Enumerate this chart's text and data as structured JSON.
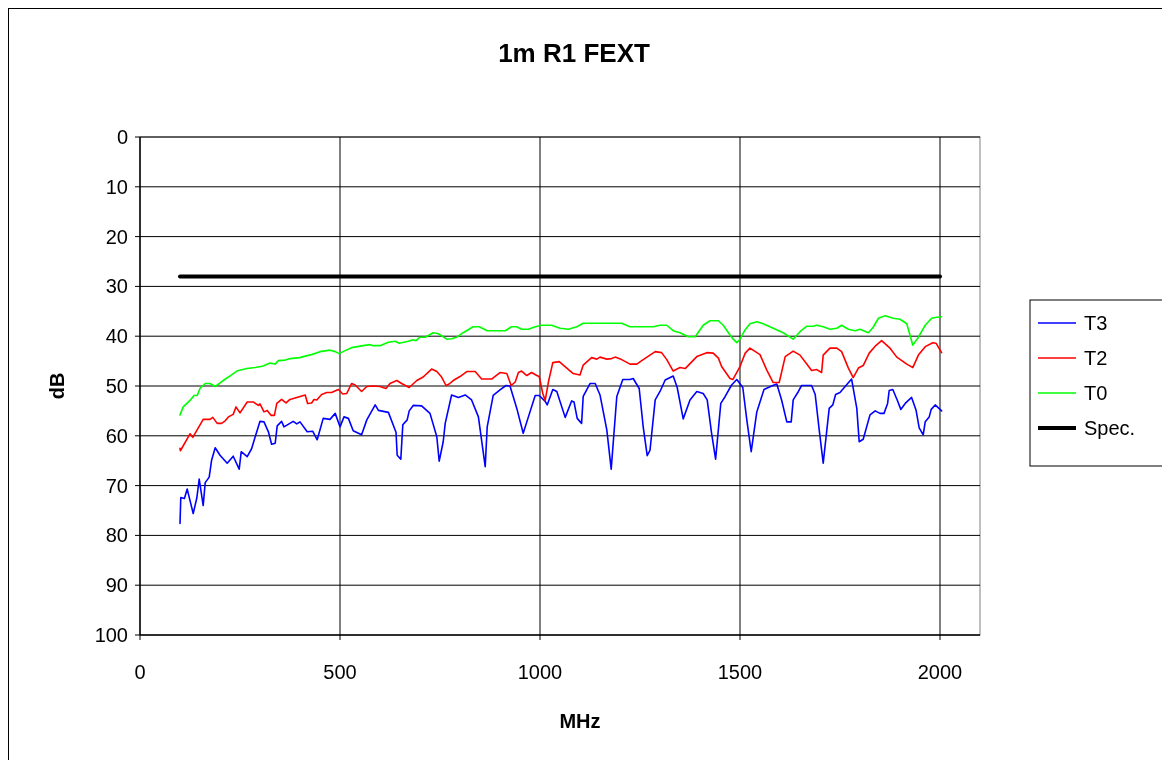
{
  "chart_data": {
    "type": "line",
    "title": "1m R1 FEXT",
    "xlabel": "MHz",
    "ylabel": "dB",
    "xlim": [
      0,
      2100
    ],
    "xticks": [
      0,
      500,
      1000,
      1500,
      2000
    ],
    "ylim": [
      100,
      0
    ],
    "yticks": [
      0,
      10,
      20,
      30,
      40,
      50,
      60,
      70,
      80,
      90,
      100
    ],
    "grid": true,
    "legend": "right",
    "marker": "none",
    "line_style": "solid",
    "series": [
      {
        "name": "T3",
        "color": "#0000ff",
        "x": [
          100,
          102,
          111,
          118,
          133,
          142,
          148,
          158,
          163,
          173,
          179,
          188,
          200,
          218,
          233,
          248,
          253,
          268,
          279,
          288,
          300,
          310,
          321,
          329,
          338,
          343,
          354,
          360,
          383,
          392,
          400,
          418,
          432,
          443,
          458,
          475,
          488,
          500,
          510,
          521,
          533,
          554,
          567,
          588,
          596,
          621,
          640,
          643,
          652,
          657,
          668,
          673,
          683,
          704,
          725,
          742,
          748,
          758,
          763,
          779,
          796,
          813,
          829,
          846,
          863,
          868,
          883,
          900,
          915,
          925,
          942,
          958,
          971,
          988,
          998,
          1013,
          1018,
          1032,
          1042,
          1063,
          1079,
          1085,
          1093,
          1104,
          1108,
          1125,
          1138,
          1150,
          1167,
          1178,
          1192,
          1207,
          1225,
          1233,
          1248,
          1258,
          1268,
          1275,
          1288,
          1300,
          1313,
          1333,
          1343,
          1358,
          1375,
          1392,
          1408,
          1418,
          1429,
          1439,
          1452,
          1463,
          1479,
          1492,
          1507,
          1517,
          1528,
          1542,
          1560,
          1579,
          1592,
          1604,
          1617,
          1628,
          1633,
          1646,
          1654,
          1679,
          1688,
          1698,
          1708,
          1723,
          1732,
          1739,
          1750,
          1779,
          1792,
          1798,
          1808,
          1825,
          1838,
          1850,
          1860,
          1869,
          1873,
          1882,
          1893,
          1902,
          1913,
          1929,
          1940,
          1948,
          1958,
          1963,
          1973,
          1978,
          1988,
          2004
        ],
        "values": [
          77.6,
          72.4,
          72.6,
          70.7,
          75.6,
          72.5,
          68.7,
          74,
          69.4,
          68.3,
          64.9,
          62.4,
          63.9,
          65.5,
          64.1,
          66.7,
          63.2,
          64.2,
          62.6,
          60.2,
          57.1,
          57.2,
          59.2,
          61.7,
          61.5,
          58,
          57.1,
          58.2,
          57.1,
          57.6,
          57.2,
          59.2,
          59.1,
          60.8,
          56.5,
          56.7,
          55.5,
          58.2,
          56.2,
          56.5,
          59,
          59.8,
          56.8,
          53.8,
          54.9,
          55.3,
          59.3,
          63.9,
          64.7,
          57.8,
          56.8,
          55,
          53.9,
          54,
          55.5,
          60.2,
          65.1,
          61.2,
          57.5,
          51.8,
          52.3,
          51.8,
          52.8,
          56.2,
          66.2,
          58.2,
          51.9,
          50.8,
          49.9,
          50,
          54.5,
          59.5,
          56.2,
          51.9,
          51.9,
          53.1,
          53.8,
          50.7,
          51.1,
          56.3,
          53,
          53.2,
          56.5,
          57.5,
          52.1,
          49.5,
          49.5,
          51.8,
          58.8,
          66.7,
          52.1,
          48.7,
          48.7,
          48.5,
          50.5,
          58.2,
          64,
          62.9,
          52.8,
          51.1,
          48.8,
          48,
          50.3,
          56.6,
          52.8,
          51.1,
          51.5,
          52.8,
          59.5,
          64.7,
          53.5,
          52.1,
          49.8,
          48.7,
          50.3,
          56.8,
          63.2,
          55.2,
          50.7,
          50,
          49.6,
          52.8,
          57.2,
          57.2,
          52.8,
          51.1,
          49.9,
          49.9,
          51.7,
          58.8,
          65.5,
          54.5,
          53.8,
          51.7,
          51.3,
          48.6,
          54.5,
          61.2,
          60.7,
          55.8,
          55,
          55.5,
          55.5,
          53.5,
          50.9,
          50.7,
          52.8,
          54.7,
          53.5,
          52.3,
          54.8,
          58.4,
          59.8,
          57.2,
          56.2,
          54.7,
          53.8,
          55
        ]
      },
      {
        "name": "T2",
        "color": "#ff0000",
        "x": [
          100,
          101,
          125,
          132,
          158,
          175,
          182,
          193,
          204,
          213,
          221,
          233,
          240,
          250,
          268,
          283,
          296,
          300,
          310,
          318,
          328,
          336,
          342,
          354,
          365,
          375,
          392,
          413,
          419,
          429,
          435,
          442,
          454,
          467,
          479,
          496,
          507,
          517,
          529,
          538,
          554,
          567,
          583,
          600,
          615,
          625,
          642,
          654,
          673,
          692,
          708,
          729,
          742,
          754,
          765,
          773,
          783,
          800,
          817,
          838,
          854,
          879,
          900,
          917,
          928,
          938,
          946,
          954,
          967,
          979,
          992,
          998,
          1007,
          1013,
          1021,
          1032,
          1048,
          1067,
          1083,
          1100,
          1108,
          1129,
          1142,
          1150,
          1167,
          1179,
          1188,
          1204,
          1225,
          1242,
          1258,
          1288,
          1304,
          1317,
          1333,
          1350,
          1363,
          1392,
          1417,
          1433,
          1446,
          1454,
          1475,
          1482,
          1500,
          1513,
          1525,
          1550,
          1567,
          1583,
          1598,
          1613,
          1633,
          1650,
          1667,
          1679,
          1692,
          1704,
          1708,
          1725,
          1742,
          1754,
          1771,
          1783,
          1796,
          1808,
          1823,
          1838,
          1854,
          1875,
          1892,
          1917,
          1932,
          1946,
          1963,
          1982,
          1990,
          2004
        ],
        "values": [
          62.5,
          63,
          59.6,
          60.3,
          56.7,
          56.7,
          56.3,
          57.5,
          57.5,
          57,
          56.2,
          55.7,
          54.2,
          55.4,
          53.2,
          53.2,
          53.9,
          53.6,
          55.2,
          54.9,
          55.9,
          55.9,
          53.5,
          52.7,
          53.4,
          52.7,
          52.3,
          51.8,
          53.5,
          53.4,
          52.7,
          52.8,
          51.7,
          51.3,
          51.3,
          50.7,
          51.6,
          51.5,
          49.5,
          49.8,
          51.1,
          50.1,
          50,
          50.1,
          50.5,
          49.5,
          48.9,
          49.5,
          50.3,
          48.9,
          48.2,
          46.6,
          47.1,
          48.2,
          49.9,
          49.6,
          48.9,
          48.1,
          47.1,
          47.1,
          48.6,
          48.6,
          47.3,
          47.5,
          49.9,
          49.2,
          47.3,
          47,
          47.9,
          47.3,
          47.9,
          48.1,
          51.5,
          52.9,
          49.2,
          45.3,
          45.1,
          46.4,
          47.5,
          47.8,
          45.8,
          44.3,
          44.6,
          44.2,
          44.6,
          44.5,
          44.2,
          44.7,
          45.6,
          45.6,
          44.7,
          43.1,
          43.3,
          44.7,
          47,
          46.3,
          46.5,
          44.1,
          43.3,
          43.4,
          44.4,
          46.1,
          48.5,
          48.7,
          46.1,
          43.4,
          42.4,
          43.7,
          46.8,
          49.3,
          49.3,
          44.1,
          43,
          43.8,
          45.6,
          46.9,
          46.7,
          47.3,
          43.8,
          42.4,
          42.4,
          43.1,
          46.4,
          48.3,
          46.4,
          45.9,
          43.4,
          42,
          40.9,
          42.4,
          44.2,
          45.6,
          46.3,
          43.8,
          42.1,
          41.3,
          41.4,
          43.3
        ]
      },
      {
        "name": "T0",
        "color": "#00ff00",
        "x": [
          100,
          108,
          125,
          135,
          143,
          150,
          163,
          175,
          188,
          208,
          221,
          242,
          267,
          288,
          308,
          325,
          338,
          346,
          363,
          375,
          400,
          413,
          429,
          450,
          475,
          488,
          498,
          510,
          529,
          558,
          575,
          583,
          600,
          621,
          638,
          648,
          671,
          683,
          690,
          700,
          713,
          733,
          746,
          767,
          779,
          792,
          808,
          833,
          848,
          868,
          892,
          913,
          929,
          942,
          954,
          971,
          988,
          1004,
          1029,
          1050,
          1071,
          1092,
          1108,
          1167,
          1204,
          1225,
          1258,
          1283,
          1300,
          1317,
          1333,
          1350,
          1371,
          1388,
          1408,
          1425,
          1446,
          1458,
          1471,
          1483,
          1492,
          1500,
          1513,
          1525,
          1542,
          1558,
          1583,
          1608,
          1633,
          1650,
          1667,
          1683,
          1692,
          1708,
          1725,
          1742,
          1754,
          1771,
          1788,
          1800,
          1821,
          1833,
          1846,
          1863,
          1883,
          1900,
          1917,
          1932,
          1946,
          1963,
          1979,
          1992,
          2004
        ],
        "values": [
          55.8,
          54.2,
          52.9,
          51.9,
          51.9,
          50.5,
          49.5,
          49.5,
          50.1,
          48.9,
          48.2,
          47,
          46.5,
          46.3,
          46,
          45.4,
          45.6,
          44.9,
          44.8,
          44.5,
          44.3,
          44,
          43.7,
          43.1,
          42.8,
          43.1,
          43.5,
          43,
          42.3,
          41.9,
          41.7,
          41.9,
          41.9,
          41.2,
          41,
          41.4,
          41,
          40.7,
          40.9,
          40.2,
          40.2,
          39.3,
          39.5,
          40.6,
          40.5,
          40.2,
          39.3,
          38.1,
          38.1,
          38.9,
          38.9,
          38.9,
          38.1,
          38.1,
          38.6,
          38.6,
          38.1,
          37.8,
          37.8,
          38.4,
          38.6,
          38.1,
          37.4,
          37.4,
          37.4,
          38.1,
          38.1,
          38.1,
          37.8,
          37.8,
          38.9,
          39.3,
          40.1,
          40.1,
          37.8,
          36.9,
          36.9,
          37.8,
          39.3,
          40.6,
          41.3,
          40.6,
          38.7,
          37.5,
          37.1,
          37.5,
          38.4,
          39.3,
          40.6,
          39.1,
          38,
          38,
          37.8,
          38.1,
          38.6,
          38.4,
          37.8,
          38.6,
          38.9,
          38.6,
          39.3,
          38.2,
          36.4,
          35.9,
          36.4,
          36.6,
          37.5,
          41.8,
          40.2,
          37.8,
          36.4,
          36.2,
          36.1
        ]
      },
      {
        "name": "Spec.",
        "color": "#000000",
        "x": [
          100,
          2000
        ],
        "values": [
          28,
          28
        ]
      }
    ]
  }
}
